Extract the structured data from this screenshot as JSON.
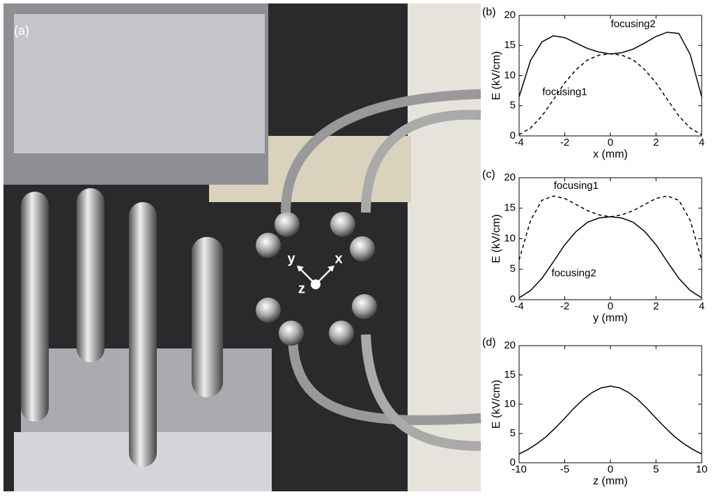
{
  "photo": {
    "label": "(a)",
    "axis_labels": [
      "y",
      "x",
      "z"
    ]
  },
  "chart_data": [
    {
      "type": "line",
      "label": "(b)",
      "xlabel": "x (mm)",
      "ylabel": "E (kV/cm)",
      "x": [
        -4,
        -3.5,
        -3,
        -2.5,
        -2,
        -1.5,
        -1,
        -0.5,
        0,
        0.5,
        1,
        1.5,
        2,
        2.5,
        3,
        3.5,
        4
      ],
      "series": [
        {
          "name": "focusing2",
          "color": "#000000",
          "dashed": false,
          "values": [
            6.5,
            12.5,
            15.6,
            16.6,
            16.3,
            15.4,
            14.5,
            13.9,
            13.6,
            13.8,
            14.4,
            15.4,
            16.5,
            17.2,
            17,
            13.5,
            6.5
          ]
        },
        {
          "name": "focusing1",
          "color": "#000000",
          "dashed": true,
          "values": [
            0.2,
            1.3,
            3.3,
            6,
            8.8,
            11,
            12.6,
            13.4,
            13.6,
            13.4,
            12.6,
            11,
            8.8,
            6,
            3.3,
            1.3,
            0.2
          ]
        }
      ],
      "xlim": [
        -4,
        4
      ],
      "ylim": [
        0,
        20
      ],
      "xticks": [
        -4,
        -2,
        0,
        2,
        4
      ],
      "yticks": [
        0,
        5,
        10,
        15,
        20
      ]
    },
    {
      "type": "line",
      "label": "(c)",
      "xlabel": "y (mm)",
      "ylabel": "E (kV/cm)",
      "x": [
        -4,
        -3.5,
        -3,
        -2.5,
        -2,
        -1.5,
        -1,
        -0.5,
        0,
        0.5,
        1,
        1.5,
        2,
        2.5,
        3,
        3.5,
        4
      ],
      "series": [
        {
          "name": "focusing1",
          "color": "#000000",
          "dashed": true,
          "values": [
            6.5,
            13,
            16.3,
            17,
            16.6,
            15.6,
            14.6,
            13.9,
            13.6,
            13.9,
            14.6,
            15.6,
            16.6,
            17,
            16.3,
            13,
            6.5
          ]
        },
        {
          "name": "focusing2",
          "color": "#000000",
          "dashed": false,
          "values": [
            0.3,
            1.5,
            3.5,
            6.2,
            9,
            11.2,
            12.7,
            13.4,
            13.6,
            13.4,
            12.7,
            11.2,
            9,
            6.2,
            3.5,
            1.5,
            0.3
          ]
        }
      ],
      "xlim": [
        -4,
        4
      ],
      "ylim": [
        0,
        20
      ],
      "xticks": [
        -4,
        -2,
        0,
        2,
        4
      ],
      "yticks": [
        0,
        5,
        10,
        15,
        20
      ]
    },
    {
      "type": "line",
      "label": "(d)",
      "xlabel": "z (mm)",
      "ylabel": "E (kV/cm)",
      "x": [
        -10,
        -9,
        -8,
        -7,
        -6,
        -5,
        -4,
        -3,
        -2,
        -1,
        0,
        1,
        2,
        3,
        4,
        5,
        6,
        7,
        8,
        9,
        10
      ],
      "series": [
        {
          "color": "#000000",
          "dashed": false,
          "values": [
            1.5,
            2.3,
            3.3,
            4.5,
            6,
            7.6,
            9.3,
            10.8,
            12,
            12.8,
            13.1,
            12.8,
            12,
            10.8,
            9.3,
            7.6,
            6,
            4.5,
            3.3,
            2.3,
            1.5
          ]
        }
      ],
      "xlim": [
        -10,
        10
      ],
      "ylim": [
        0,
        20
      ],
      "xticks": [
        -10,
        -5,
        0,
        5,
        10
      ],
      "yticks": [
        0,
        5,
        10,
        15,
        20
      ]
    }
  ]
}
